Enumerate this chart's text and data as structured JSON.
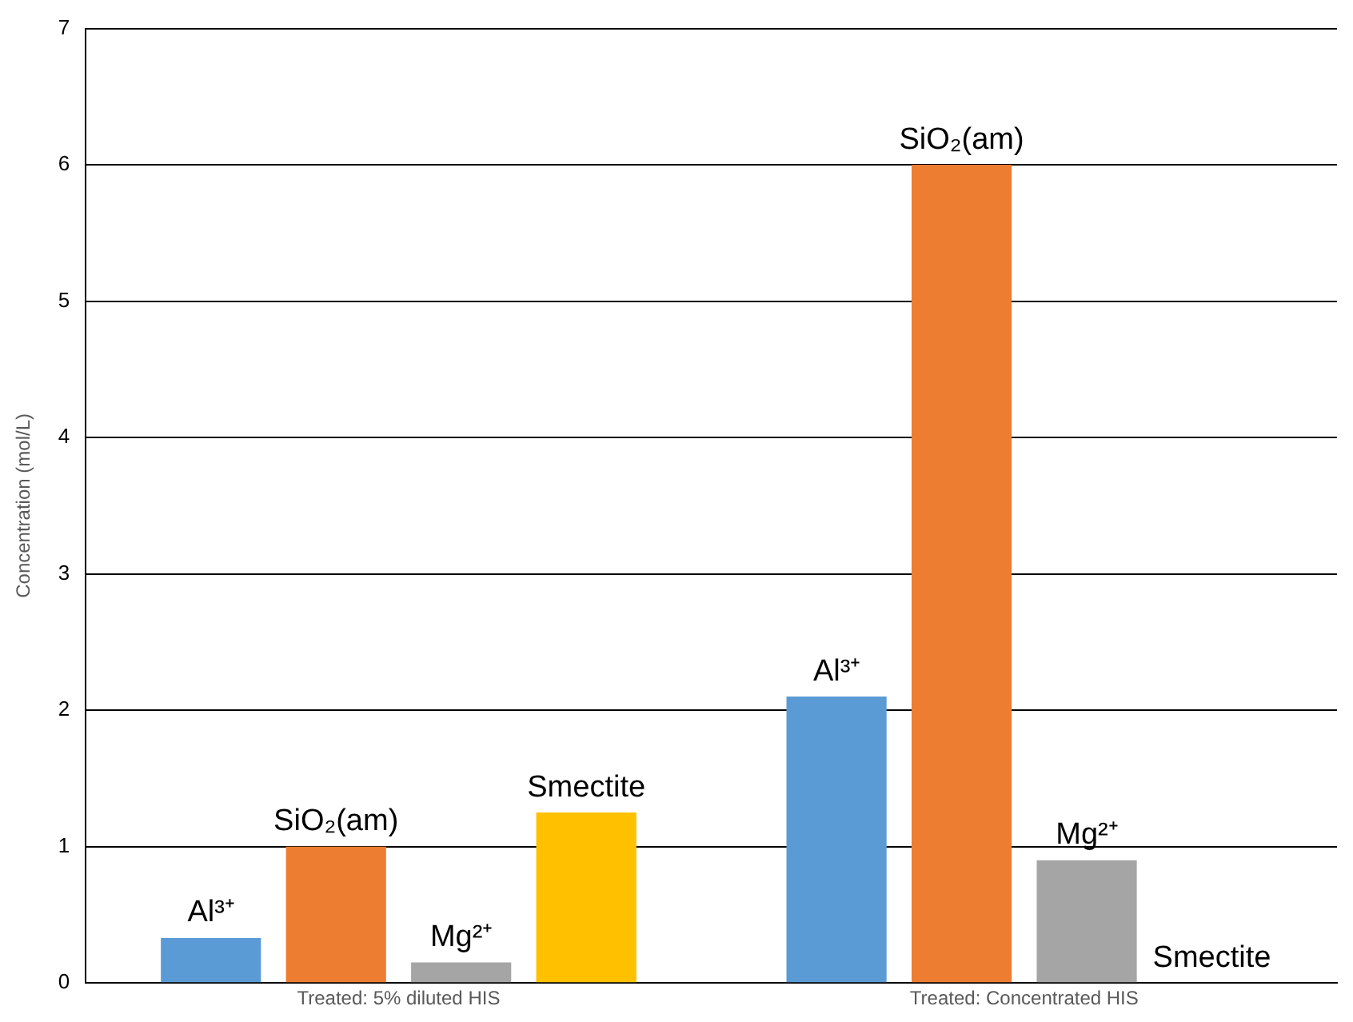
{
  "chart_data": {
    "type": "bar",
    "ylabel": "Concentration (mol/L)",
    "categories": [
      "Treated: 5% diluted HIS",
      "Treated: Concentrated HIS"
    ],
    "series": [
      {
        "name": "Al³⁺",
        "color": "#5b9bd5",
        "values": [
          0.33,
          2.1
        ]
      },
      {
        "name": "SiO₂(am)",
        "color": "#ed7d31",
        "values": [
          1.0,
          6.0
        ]
      },
      {
        "name": "Mg²⁺",
        "color": "#a5a5a5",
        "values": [
          0.15,
          0.9
        ]
      },
      {
        "name": "Smectite",
        "color": "#ffc000",
        "values": [
          1.25,
          0
        ]
      }
    ],
    "ylim": [
      0,
      7
    ],
    "yticks": [
      0,
      1,
      2,
      3,
      4,
      5,
      6,
      7
    ],
    "grid": "y",
    "legend": false
  }
}
